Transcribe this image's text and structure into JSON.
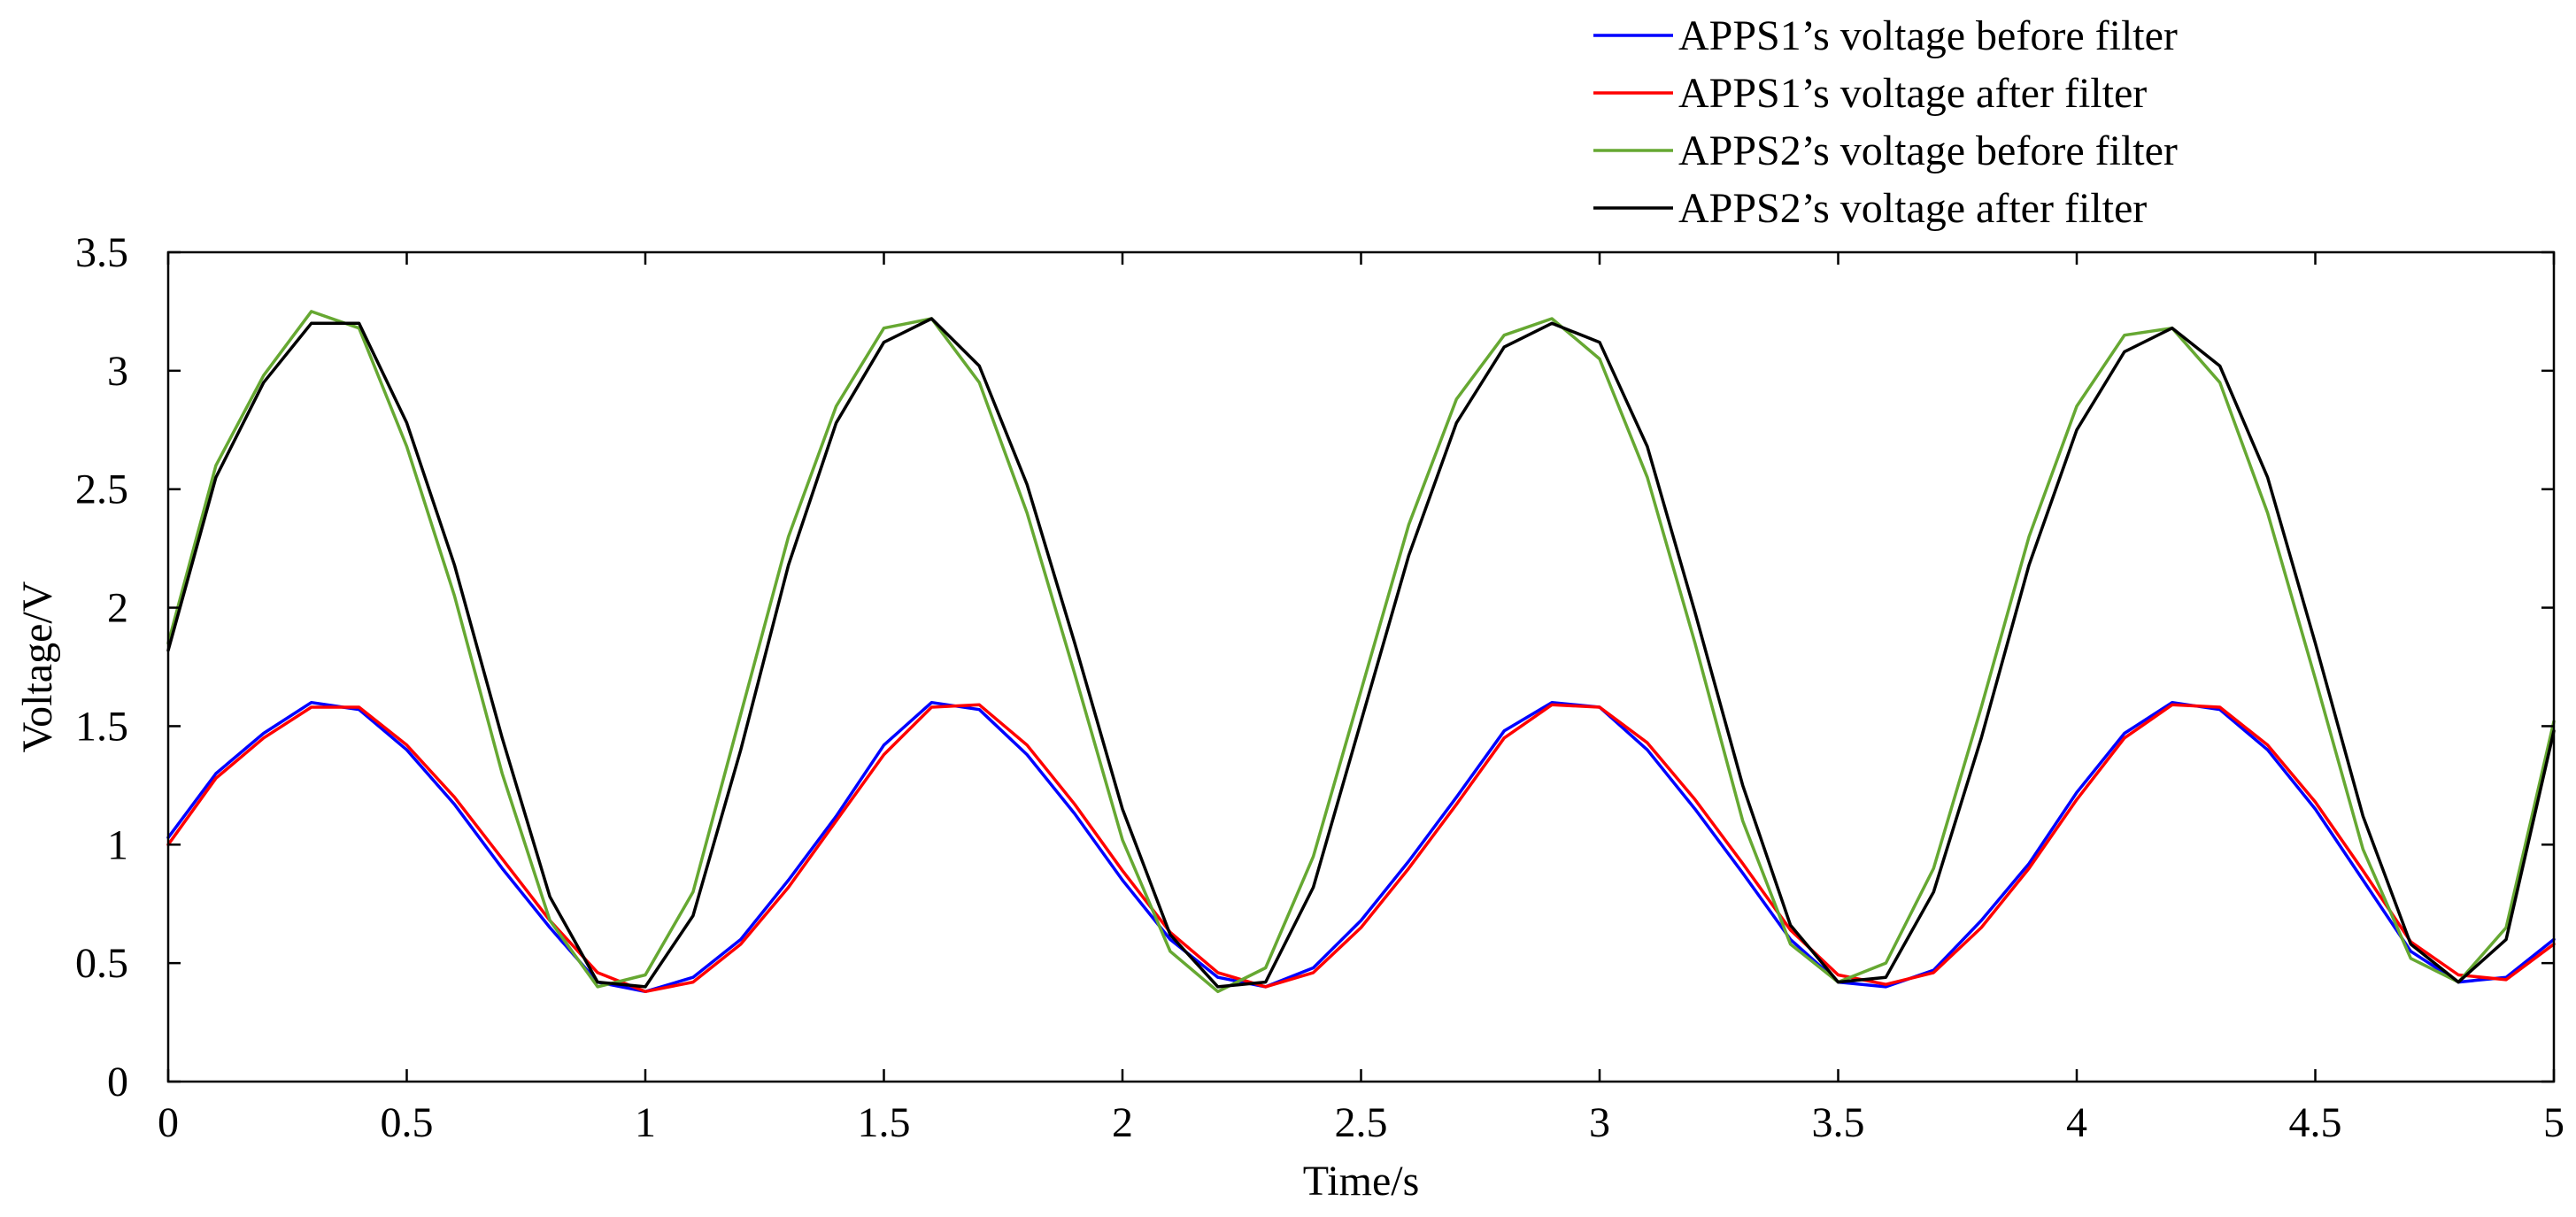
{
  "chart_data": {
    "type": "line",
    "title": "",
    "xlabel": "Time/s",
    "ylabel": "Voltage/V",
    "xlim": [
      0,
      5
    ],
    "ylim": [
      0,
      3.5
    ],
    "xticks": [
      0,
      0.5,
      1,
      1.5,
      2,
      2.5,
      3,
      3.5,
      4,
      4.5,
      5
    ],
    "xtick_labels": [
      "0",
      "0.5",
      "1",
      "1.5",
      "2",
      "2.5",
      "3",
      "3.5",
      "4",
      "4.5",
      "5"
    ],
    "yticks": [
      0,
      0.5,
      1,
      1.5,
      2,
      2.5,
      3,
      3.5
    ],
    "ytick_labels": [
      "0",
      "0.5",
      "1",
      "1.5",
      "2",
      "2.5",
      "3",
      "3.5"
    ],
    "grid": false,
    "legend_position": "top-right, above plot",
    "x": [
      0,
      0.1,
      0.2,
      0.3,
      0.4,
      0.5,
      0.6,
      0.7,
      0.8,
      0.9,
      1.0,
      1.1,
      1.2,
      1.3,
      1.4,
      1.5,
      1.6,
      1.7,
      1.8,
      1.9,
      2.0,
      2.1,
      2.2,
      2.3,
      2.4,
      2.5,
      2.6,
      2.7,
      2.8,
      2.9,
      3.0,
      3.1,
      3.2,
      3.3,
      3.4,
      3.5,
      3.6,
      3.7,
      3.8,
      3.9,
      4.0,
      4.1,
      4.2,
      4.3,
      4.4,
      4.5,
      4.6,
      4.7,
      4.8,
      4.9,
      5.0
    ],
    "series": [
      {
        "name": "APPS1’s voltage before filter",
        "color": "#0000ff",
        "values": [
          1.03,
          1.3,
          1.47,
          1.6,
          1.57,
          1.4,
          1.17,
          0.9,
          0.65,
          0.42,
          0.38,
          0.44,
          0.6,
          0.85,
          1.12,
          1.42,
          1.6,
          1.57,
          1.38,
          1.13,
          0.85,
          0.6,
          0.44,
          0.4,
          0.48,
          0.68,
          0.93,
          1.2,
          1.48,
          1.6,
          1.58,
          1.4,
          1.15,
          0.88,
          0.6,
          0.42,
          0.4,
          0.47,
          0.68,
          0.92,
          1.22,
          1.47,
          1.6,
          1.57,
          1.4,
          1.15,
          0.85,
          0.55,
          0.42,
          0.44,
          0.6
        ]
      },
      {
        "name": "APPS1’s voltage after filter",
        "color": "#ff0000",
        "values": [
          1.0,
          1.28,
          1.45,
          1.58,
          1.58,
          1.42,
          1.2,
          0.94,
          0.68,
          0.46,
          0.38,
          0.42,
          0.58,
          0.82,
          1.1,
          1.38,
          1.58,
          1.59,
          1.42,
          1.17,
          0.89,
          0.63,
          0.46,
          0.4,
          0.46,
          0.65,
          0.9,
          1.17,
          1.45,
          1.59,
          1.58,
          1.43,
          1.19,
          0.92,
          0.64,
          0.45,
          0.41,
          0.46,
          0.65,
          0.9,
          1.19,
          1.45,
          1.59,
          1.58,
          1.42,
          1.18,
          0.89,
          0.59,
          0.45,
          0.43,
          0.58
        ]
      },
      {
        "name": "APPS2’s voltage before filter",
        "color": "#66a832",
        "values": [
          1.85,
          2.6,
          2.98,
          3.25,
          3.18,
          2.68,
          2.05,
          1.3,
          0.68,
          0.4,
          0.45,
          0.8,
          1.55,
          2.3,
          2.85,
          3.18,
          3.22,
          2.95,
          2.4,
          1.72,
          1.02,
          0.55,
          0.38,
          0.48,
          0.95,
          1.65,
          2.35,
          2.88,
          3.15,
          3.22,
          3.05,
          2.55,
          1.85,
          1.1,
          0.58,
          0.42,
          0.5,
          0.9,
          1.58,
          2.3,
          2.85,
          3.15,
          3.18,
          2.95,
          2.4,
          1.7,
          0.98,
          0.52,
          0.42,
          0.65,
          1.52
        ]
      },
      {
        "name": "APPS2’s voltage after filter",
        "color": "#000000",
        "values": [
          1.82,
          2.55,
          2.95,
          3.2,
          3.2,
          2.78,
          2.18,
          1.45,
          0.78,
          0.42,
          0.4,
          0.7,
          1.4,
          2.18,
          2.78,
          3.12,
          3.22,
          3.02,
          2.52,
          1.85,
          1.15,
          0.62,
          0.4,
          0.42,
          0.82,
          1.52,
          2.22,
          2.78,
          3.1,
          3.2,
          3.12,
          2.68,
          1.98,
          1.25,
          0.66,
          0.42,
          0.44,
          0.8,
          1.45,
          2.18,
          2.75,
          3.08,
          3.18,
          3.02,
          2.55,
          1.85,
          1.12,
          0.58,
          0.42,
          0.6,
          1.48
        ]
      }
    ]
  }
}
